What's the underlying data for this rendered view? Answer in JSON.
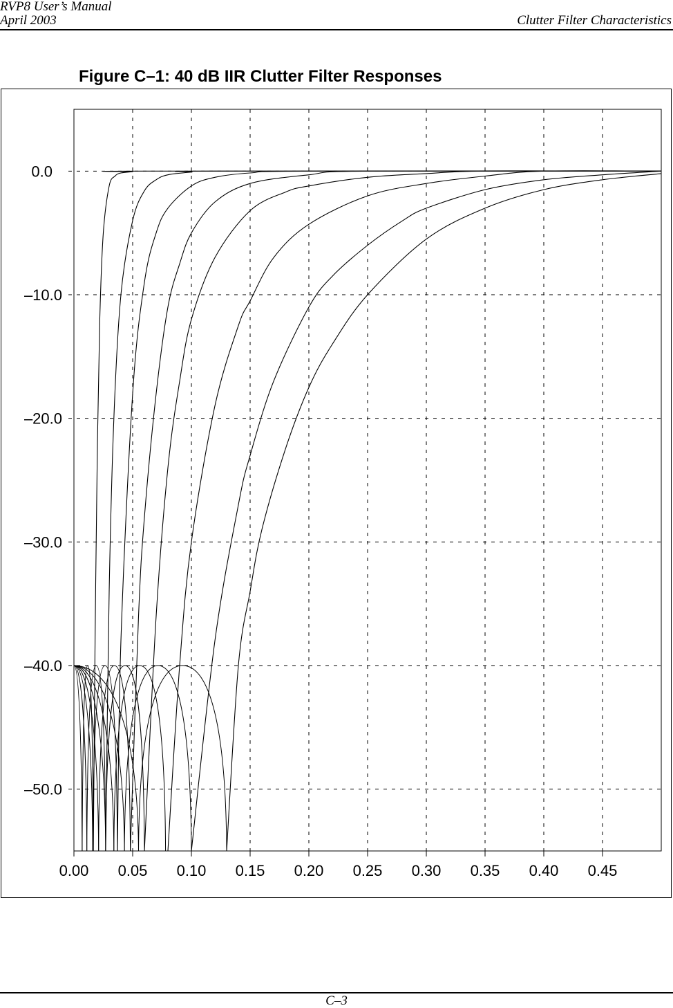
{
  "header": {
    "manual": "RVP8 User’s Manual",
    "date": "April 2003",
    "section": "Clutter Filter Characteristics"
  },
  "figure_title": "Figure C–1: 40 dB IIR Clutter Filter Responses",
  "footer": {
    "page": "C–3"
  },
  "chart_data": {
    "type": "line",
    "title": "Figure C–1: 40 dB IIR Clutter Filter Responses",
    "xlabel": "",
    "ylabel": "",
    "xlim": [
      0.0,
      0.5
    ],
    "ylim": [
      -55.0,
      5.0
    ],
    "grid": true,
    "x_ticks": [
      0.0,
      0.05,
      0.1,
      0.15,
      0.2,
      0.25,
      0.3,
      0.35,
      0.4,
      0.45
    ],
    "x_tick_labels": [
      "0.00",
      "0.05",
      "0.10",
      "0.15",
      "0.20",
      "0.25",
      "0.30",
      "0.35",
      "0.40",
      "0.45"
    ],
    "y_ticks": [
      0.0,
      -10.0,
      -20.0,
      -30.0,
      -40.0,
      -50.0
    ],
    "y_tick_labels": [
      "0.0",
      "–10.0",
      "–20.0",
      "–30.0",
      "–40.0",
      "–50.0"
    ],
    "series": [
      {
        "notch_nulls": [
          0.007,
          0.0165
        ],
        "stopband_peak_x": 0.013,
        "x": [
          0.0165,
          0.018,
          0.02,
          0.022,
          0.025,
          0.03,
          0.035,
          0.04,
          0.05,
          0.06
        ],
        "y": [
          -55,
          -38,
          -22,
          -12,
          -5,
          -1.2,
          -0.4,
          -0.15,
          -0.05,
          0
        ]
      },
      {
        "notch_nulls": [
          0.011,
          0.027
        ],
        "stopband_peak_x": 0.022,
        "x": [
          0.027,
          0.03,
          0.034,
          0.04,
          0.05,
          0.06,
          0.07,
          0.08,
          0.1,
          0.12
        ],
        "y": [
          -55,
          -34,
          -20,
          -10,
          -4,
          -1.6,
          -0.7,
          -0.3,
          -0.08,
          0
        ]
      },
      {
        "notch_nulls": [
          0.016,
          0.037
        ],
        "stopband_peak_x": 0.032,
        "x": [
          0.037,
          0.04,
          0.05,
          0.06,
          0.07,
          0.08,
          0.1,
          0.12,
          0.15,
          0.2
        ],
        "y": [
          -55,
          -38,
          -18,
          -9,
          -5,
          -3,
          -1.2,
          -0.5,
          -0.15,
          0
        ]
      },
      {
        "notch_nulls": [
          0.021,
          0.048
        ],
        "stopband_peak_x": 0.047,
        "x": [
          0.048,
          0.055,
          0.06,
          0.07,
          0.08,
          0.09,
          0.1,
          0.12,
          0.15,
          0.2,
          0.25
        ],
        "y": [
          -55,
          -36,
          -28,
          -18,
          -11,
          -7.5,
          -5,
          -2.5,
          -1,
          -0.3,
          0
        ]
      },
      {
        "notch_nulls": [
          0.027,
          0.06
        ],
        "stopband_peak_x": 0.062,
        "x": [
          0.06,
          0.07,
          0.08,
          0.09,
          0.1,
          0.12,
          0.15,
          0.18,
          0.2,
          0.25,
          0.3,
          0.35
        ],
        "y": [
          -55,
          -36,
          -24,
          -17,
          -12,
          -7,
          -3.2,
          -1.7,
          -1.2,
          -0.5,
          -0.2,
          0
        ]
      },
      {
        "notch_nulls": [
          0.034,
          0.078
        ],
        "stopband_peak_x": 0.08,
        "x": [
          0.08,
          0.09,
          0.1,
          0.12,
          0.14,
          0.15,
          0.17,
          0.2,
          0.25,
          0.3,
          0.35,
          0.4
        ],
        "y": [
          -55,
          -40,
          -30,
          -19,
          -12.5,
          -10.5,
          -7,
          -4.3,
          -2,
          -1,
          -0.4,
          0
        ]
      },
      {
        "notch_nulls": [
          0.043,
          0.1
        ],
        "stopband_peak_x": 0.1,
        "x": [
          0.1,
          0.12,
          0.14,
          0.15,
          0.17,
          0.2,
          0.22,
          0.25,
          0.28,
          0.3,
          0.35,
          0.4,
          0.45,
          0.5
        ],
        "y": [
          -55,
          -38,
          -27,
          -23,
          -17,
          -11,
          -8.5,
          -6,
          -4,
          -3,
          -1.5,
          -0.7,
          -0.3,
          0
        ]
      },
      {
        "notch_nulls": [
          0.055,
          0.13
        ],
        "stopband_peak_x": 0.1,
        "x": [
          0.13,
          0.14,
          0.15,
          0.16,
          0.18,
          0.2,
          0.22,
          0.25,
          0.3,
          0.35,
          0.4,
          0.45,
          0.5
        ],
        "y": [
          -55,
          -40,
          -34,
          -29,
          -22.5,
          -17.5,
          -14,
          -10,
          -5.5,
          -3,
          -1.5,
          -0.7,
          -0.2
        ]
      }
    ],
    "stopband_level": -40.0
  }
}
